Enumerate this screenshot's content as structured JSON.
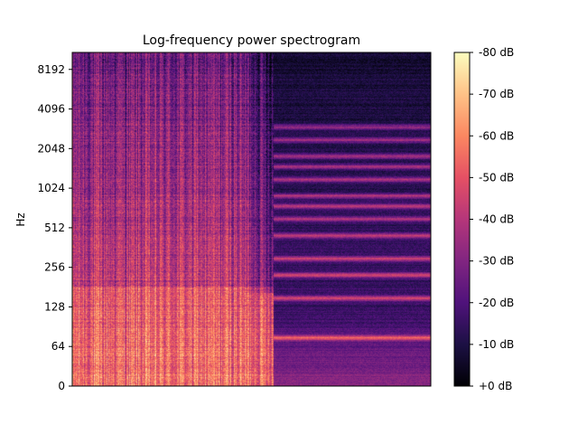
{
  "chart_data": {
    "type": "heatmap",
    "title": "Log-frequency power spectrogram",
    "xlabel": "",
    "ylabel": "Hz",
    "y_scale": "log2 (symlog, with 0 at the bottom)",
    "y_tick_labels": [
      "0",
      "64",
      "128",
      "256",
      "512",
      "1024",
      "2048",
      "4096",
      "8192"
    ],
    "y_tick_values": [
      0,
      64,
      128,
      256,
      512,
      1024,
      2048,
      4096,
      8192
    ],
    "ylim": [
      0,
      11025
    ],
    "x_tick_labels": [],
    "colormap": "magma",
    "colorbar": {
      "unit": "dB",
      "range": [
        -80,
        0
      ],
      "tick_labels": [
        "+0 dB",
        "-10 dB",
        "-20 dB",
        "-30 dB",
        "-40 dB",
        "-50 dB",
        "-60 dB",
        "-70 dB",
        "-80 dB"
      ],
      "tick_values": [
        0,
        -10,
        -20,
        -30,
        -40,
        -50,
        -60,
        -70,
        -80
      ]
    },
    "x_segments_fraction_of_duration": [
      {
        "start": 0.0,
        "end": 0.56,
        "description": "broadband energy, strong low frequencies"
      },
      {
        "start": 0.56,
        "end": 1.0,
        "description": "sustained harmonic bands"
      }
    ],
    "harmonic_band_freqs_hz": [
      75,
      150,
      225,
      300,
      450,
      600,
      750,
      900,
      1200,
      1500,
      1800,
      2400,
      3000
    ]
  }
}
